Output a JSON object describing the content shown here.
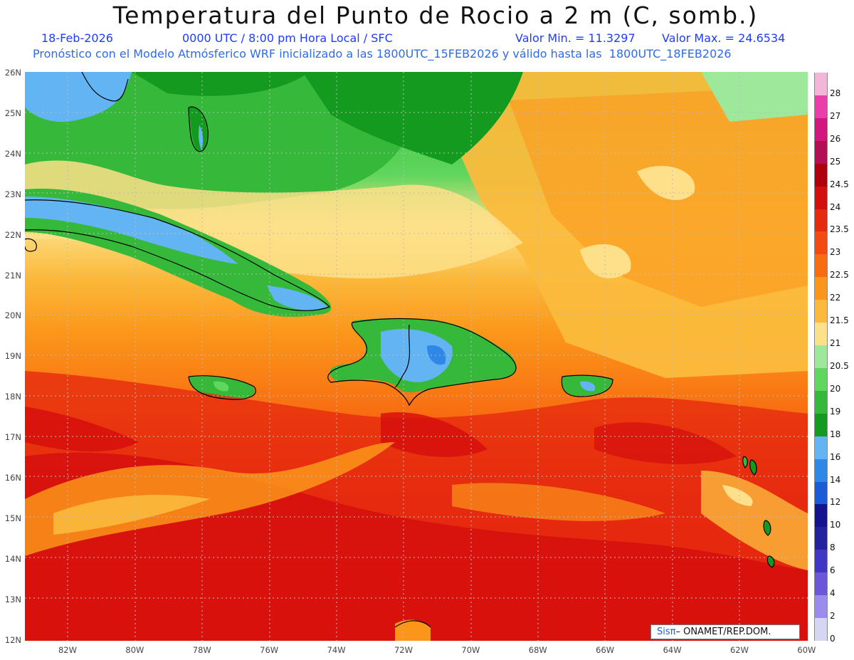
{
  "title": "Temperatura del Punto de Rocio a 2 m (C, somb.)",
  "date": "18-Feb-2026",
  "time_info": "0000 UTC / 8:00 pm Hora Local / SFC",
  "min_label": "Valor Min. = 11.3297",
  "max_label": "Valor Max. = 24.6534",
  "subtitle": "Pronóstico con el Modelo Atmósferico WRF inicializado a las 1800UTC_15FEB2026 y válido hasta las  1800UTC_18FEB2026",
  "lat_labels": [
    "26N",
    "25N",
    "24N",
    "23N",
    "22N",
    "21N",
    "20N",
    "19N",
    "18N",
    "17N",
    "16N",
    "15N",
    "14N",
    "13N",
    "12N"
  ],
  "lon_labels": [
    "82W",
    "80W",
    "78W",
    "76W",
    "74W",
    "72W",
    "70W",
    "68W",
    "66W",
    "64W",
    "62W",
    "60W"
  ],
  "colorbar": {
    "labels": [
      "28",
      "27",
      "26",
      "25",
      "24.5",
      "24",
      "23.5",
      "23",
      "22.5",
      "22",
      "21.5",
      "21",
      "20.5",
      "20",
      "19",
      "18",
      "16",
      "14",
      "12",
      "10",
      "8",
      "6",
      "4",
      "2",
      "0"
    ],
    "colors": [
      "#f2b6d9",
      "#ea3fa8",
      "#d2177f",
      "#b40f52",
      "#b0000d",
      "#d40d0d",
      "#e62a0f",
      "#f24a10",
      "#f86d12",
      "#fb961a",
      "#fbba3c",
      "#fde089",
      "#9de89a",
      "#5fd65d",
      "#36b93a",
      "#149a1f",
      "#63b4f2",
      "#2f87e8",
      "#1b5bd6",
      "#14148f",
      "#2323a2",
      "#4236c4",
      "#6a58d8",
      "#9a8cec",
      "#d5d5f4"
    ]
  },
  "credit": {
    "brand": "Sisπ",
    "text": " – ONAMET/REP.DOM."
  }
}
